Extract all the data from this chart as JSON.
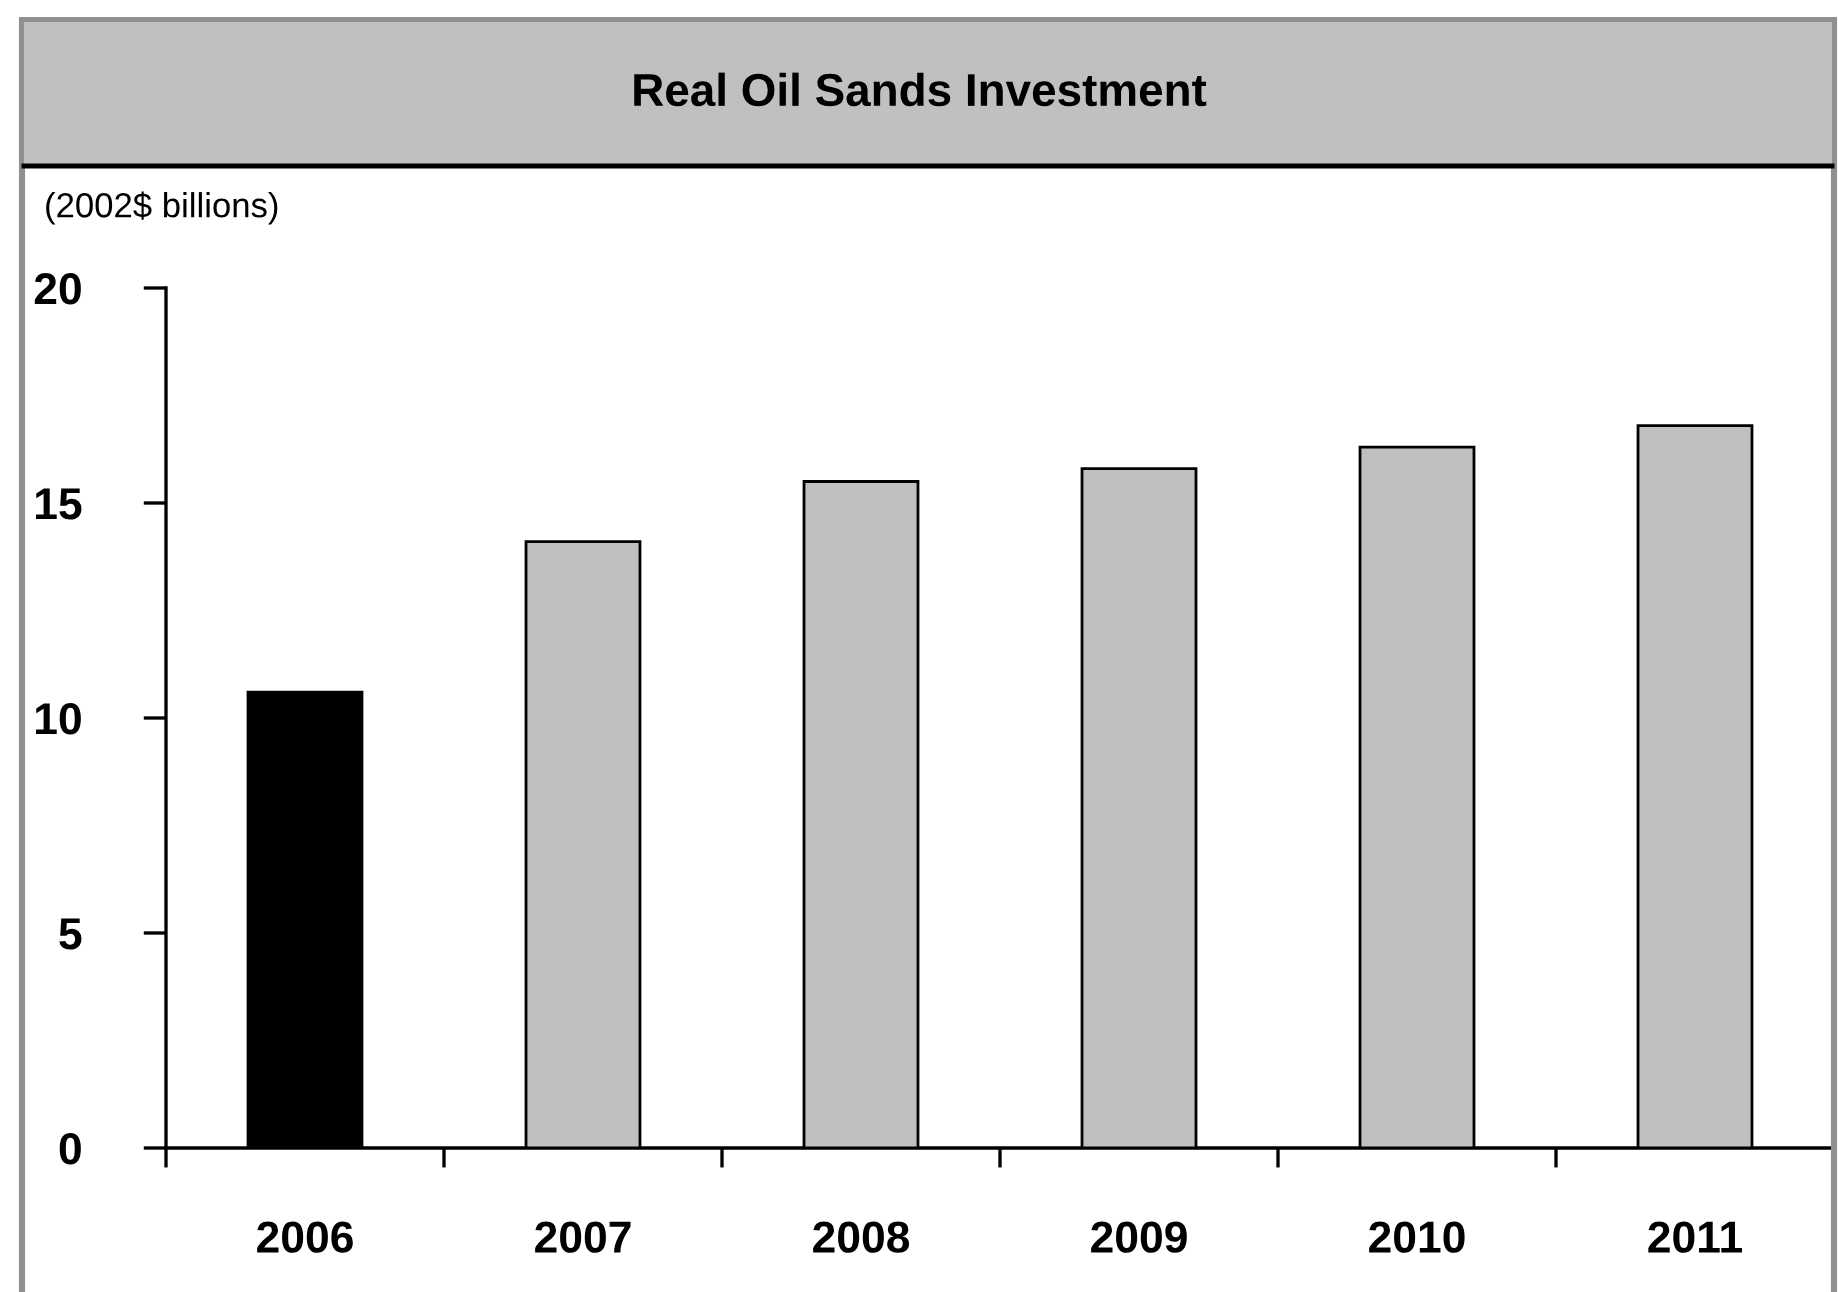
{
  "chart_data": {
    "type": "bar",
    "title": "Real Oil Sands Investment",
    "ylabel": "(2002$ billions)",
    "categories": [
      "2006",
      "2007",
      "2008",
      "2009",
      "2010",
      "2011"
    ],
    "values": [
      10.6,
      14.1,
      15.5,
      15.8,
      16.3,
      16.8
    ],
    "colors": [
      "#000000",
      "#c0c0c0",
      "#c0c0c0",
      "#c0c0c0",
      "#c0c0c0",
      "#c0c0c0"
    ],
    "ylim": [
      0,
      20
    ],
    "yticks": [
      0,
      5,
      10,
      15,
      20
    ],
    "grid": false,
    "legend": false
  }
}
